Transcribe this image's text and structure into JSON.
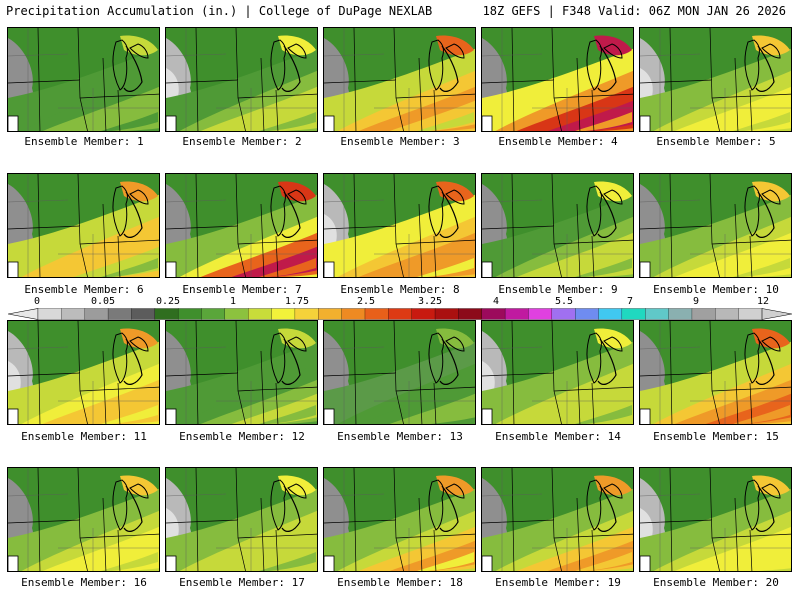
{
  "header": {
    "title_left": "Precipitation Accumulation (in.) | College of DuPage NEXLAB",
    "title_right": "18Z GEFS | F348 Valid: 06Z MON JAN 26 2026"
  },
  "member_label": "Ensemble Member:",
  "members": [
    "1",
    "2",
    "3",
    "4",
    "5",
    "6",
    "7",
    "8",
    "9",
    "10",
    "11",
    "12",
    "13",
    "14",
    "15",
    "16",
    "17",
    "18",
    "19",
    "20"
  ],
  "colorbar": {
    "ticks": [
      "0",
      "0.05",
      "0.25",
      "1",
      "1.75",
      "2.5",
      "3.25",
      "4",
      "5.5",
      "7",
      "9",
      "12"
    ],
    "colors": [
      "#d8d8d8",
      "#bcbcbc",
      "#9c9c9c",
      "#7a7a7a",
      "#5c5c5c",
      "#2f6e1f",
      "#3f8f2c",
      "#5aa63a",
      "#8cc23e",
      "#c8dc3a",
      "#f2f23a",
      "#f5d23a",
      "#f2b02e",
      "#ee8a22",
      "#e8601a",
      "#dd3a14",
      "#c81a10",
      "#aa1010",
      "#8c0a1a",
      "#9c0a5c",
      "#c01aa0",
      "#e040e0",
      "#a070f0",
      "#6f8cf0",
      "#40c8f0",
      "#20d8c0",
      "#60c8c8",
      "#8ab0b0",
      "#a0a0a0",
      "#b8b8b8",
      "#d0d0d0"
    ],
    "intensity_scale": [
      "#5b9a48",
      "#4f9a36",
      "#86bc3e",
      "#c6d93a",
      "#f0ee3a",
      "#f4c734",
      "#ef9a28",
      "#e8641c",
      "#d83616",
      "#c01a4a",
      "#d040c8"
    ]
  },
  "panels_intensity": [
    [
      0,
      1,
      1,
      2,
      2,
      1
    ],
    [
      0,
      1,
      2,
      3,
      3,
      2
    ],
    [
      1,
      3,
      5,
      6,
      5,
      3
    ],
    [
      1,
      4,
      6,
      8,
      9,
      6
    ],
    [
      0,
      2,
      3,
      4,
      4,
      3
    ],
    [
      1,
      3,
      5,
      5,
      3,
      2
    ],
    [
      0,
      2,
      4,
      7,
      9,
      7
    ],
    [
      1,
      4,
      5,
      6,
      6,
      4
    ],
    [
      0,
      1,
      2,
      3,
      3,
      2
    ],
    [
      0,
      2,
      3,
      4,
      4,
      3
    ],
    [
      1,
      3,
      4,
      5,
      5,
      4
    ],
    [
      0,
      1,
      1,
      2,
      3,
      2
    ],
    [
      0,
      0,
      1,
      1,
      2,
      2
    ],
    [
      1,
      2,
      3,
      3,
      3,
      2
    ],
    [
      1,
      3,
      5,
      6,
      7,
      6
    ],
    [
      0,
      2,
      3,
      4,
      4,
      3
    ],
    [
      1,
      2,
      3,
      3,
      3,
      2
    ],
    [
      0,
      2,
      3,
      5,
      6,
      4
    ],
    [
      1,
      2,
      3,
      5,
      6,
      5
    ],
    [
      0,
      2,
      3,
      4,
      4,
      4
    ]
  ]
}
